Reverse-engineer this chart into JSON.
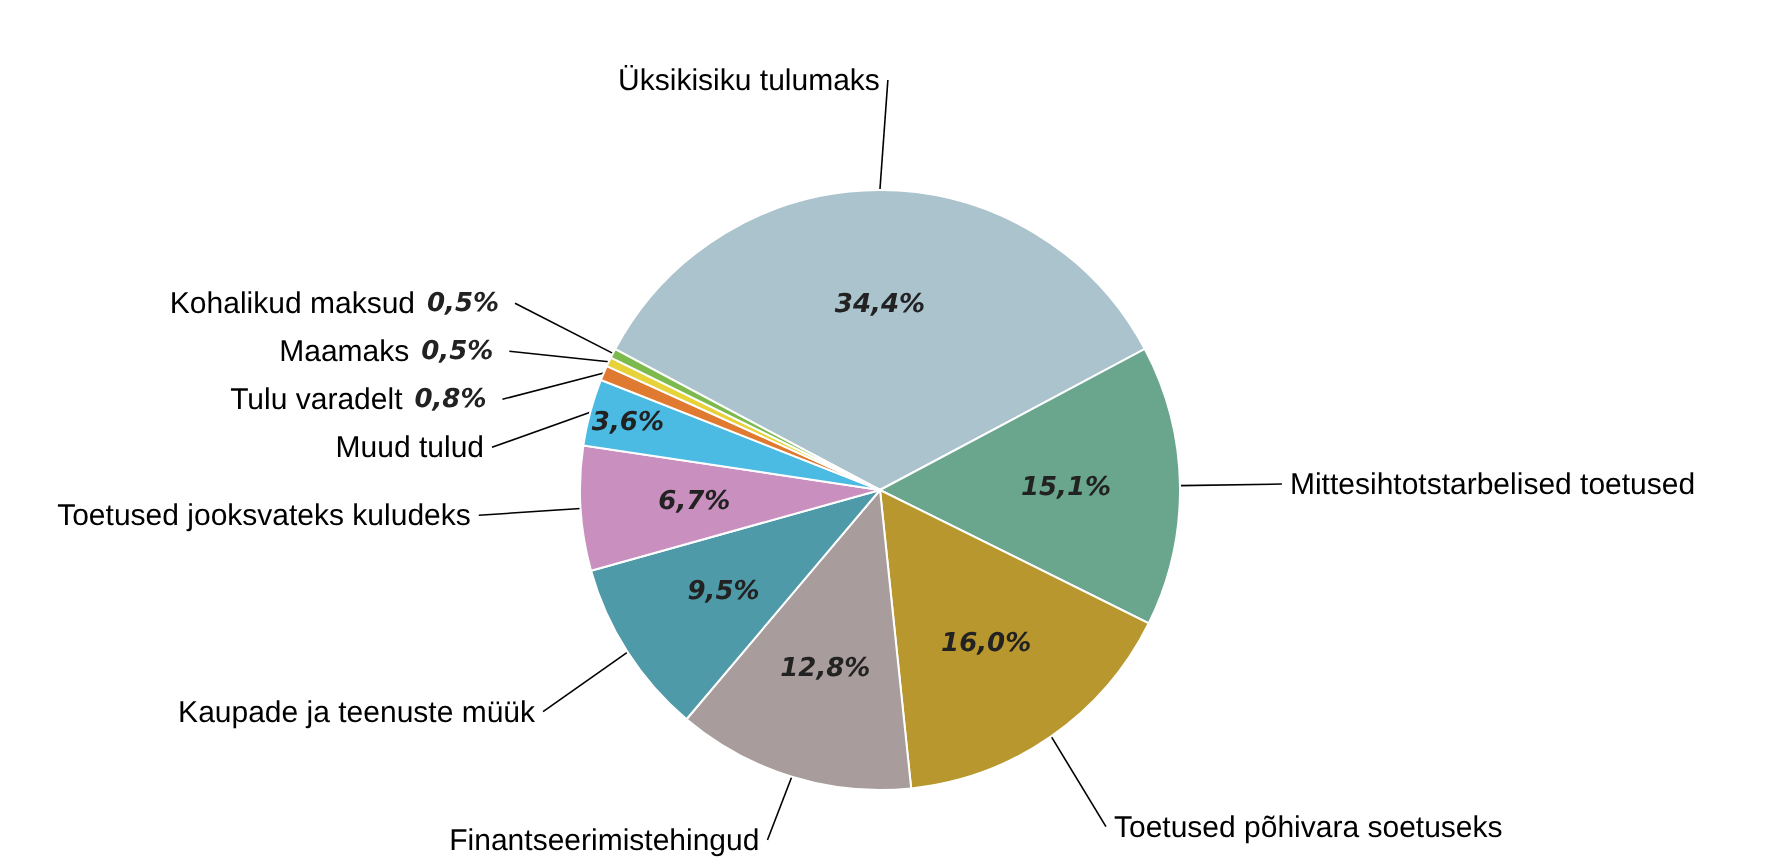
{
  "chart_data": {
    "type": "pie",
    "categories": [
      "Üksikisiku tulumaks",
      "Mittesihtotstarbelised toetused",
      "Toetused põhivara soetuseks",
      "Finantseerimistehingud",
      "Kaupade ja teenuste müük",
      "Toetused jooksvateks kuludeks",
      "Muud tulud",
      "Tulu varadelt",
      "Maamaks",
      "Kohalikud maksud"
    ],
    "values": [
      34.4,
      15.1,
      16.0,
      12.8,
      9.5,
      6.7,
      3.6,
      0.8,
      0.5,
      0.5
    ],
    "value_labels": [
      "34,4%",
      "15,1%",
      "16,0%",
      "12,8%",
      "9,5%",
      "6,7%",
      "3,6%",
      "0,8%",
      "0,5%",
      "0,5%"
    ],
    "colors": [
      "#aac3cd",
      "#6aa58e",
      "#b8982e",
      "#a89c9c",
      "#4f9aa8",
      "#c98fbf",
      "#4bbbe3",
      "#e07a30",
      "#e8d23a",
      "#7dba4e"
    ]
  }
}
